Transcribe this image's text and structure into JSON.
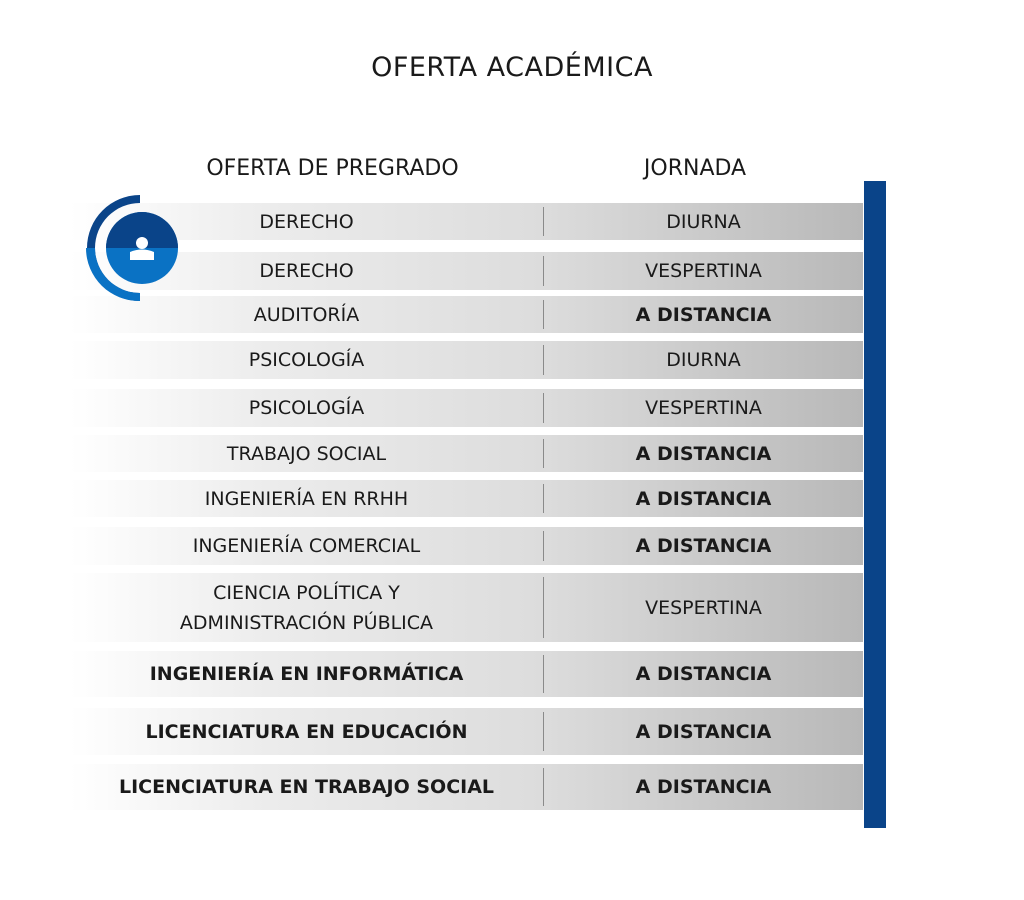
{
  "title": "OFERTA ACADÉMICA",
  "headers": {
    "program": "OFERTA DE PREGRADO",
    "schedule": "JORNADA"
  },
  "icon": "user-circle-icon",
  "colors": {
    "accent": "#0a4489",
    "accent_light": "#0a72c4"
  },
  "rows": [
    {
      "program": "DERECHO",
      "schedule": "DIURNA"
    },
    {
      "program": "DERECHO",
      "schedule": "VESPERTINA"
    },
    {
      "program": "AUDITORÍA",
      "schedule": "A DISTANCIA"
    },
    {
      "program": "PSICOLOGÍA",
      "schedule": "DIURNA"
    },
    {
      "program": "PSICOLOGÍA",
      "schedule": "VESPERTINA"
    },
    {
      "program": "TRABAJO SOCIAL",
      "schedule": "A DISTANCIA"
    },
    {
      "program": "INGENIERÍA EN RRHH",
      "schedule": "A DISTANCIA"
    },
    {
      "program": "INGENIERÍA COMERCIAL",
      "schedule": "A DISTANCIA"
    },
    {
      "program": "CIENCIA POLÍTICA Y ADMINISTRACIÓN PÚBLICA",
      "schedule": "VESPERTINA"
    },
    {
      "program": "INGENIERÍA EN INFORMÁTICA",
      "schedule": "A DISTANCIA"
    },
    {
      "program": "LICENCIATURA EN EDUCACIÓN",
      "schedule": "A DISTANCIA"
    },
    {
      "program": "LICENCIATURA EN TRABAJO SOCIAL",
      "schedule": "A DISTANCIA"
    }
  ]
}
